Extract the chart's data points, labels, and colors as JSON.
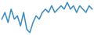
{
  "values": [
    5,
    7,
    4,
    8,
    5,
    6,
    3,
    7,
    2,
    1,
    4,
    6,
    5,
    7,
    8,
    7,
    9,
    7,
    8,
    9,
    8,
    10,
    8,
    9,
    7,
    9,
    8,
    7,
    9,
    8
  ],
  "line_color": "#3a8bbf",
  "bg_color": "#ffffff",
  "linewidth": 1.1
}
